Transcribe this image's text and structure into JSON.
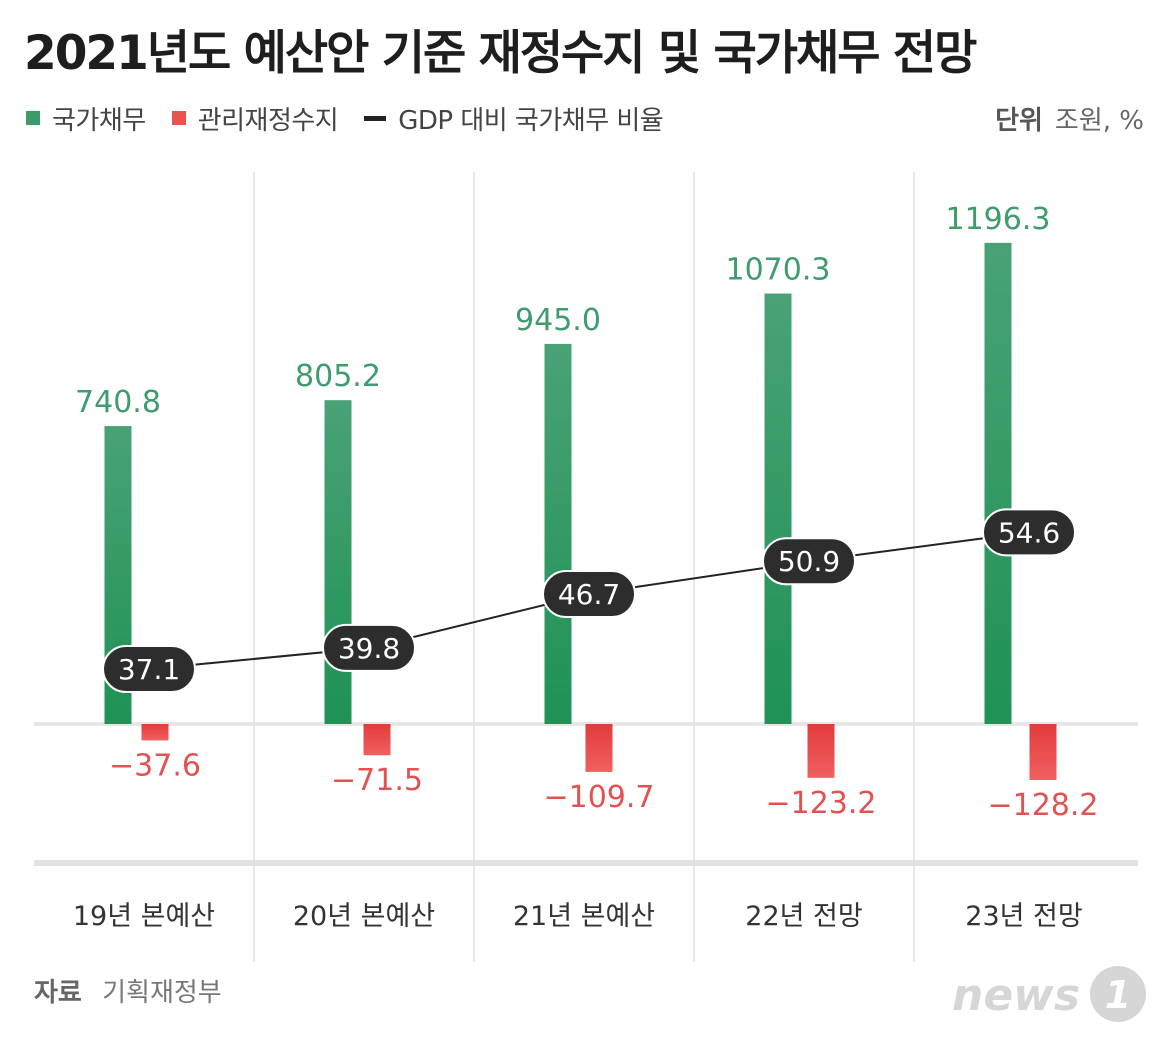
{
  "title": "2021년도 예산안 기준 재정수지 및 국가채무 전망",
  "legend": {
    "debt": "국가채무",
    "balance": "관리재정수지",
    "ratio": "GDP 대비 국가채무 비율"
  },
  "unit": {
    "key": "단위",
    "value": "조원, %"
  },
  "source": {
    "key": "자료",
    "value": "기획재정부"
  },
  "logo": {
    "text": "news",
    "mark": "1"
  },
  "colors": {
    "debt": "#2e9a62",
    "balance": "#e84b4b",
    "ratio": "#222222"
  },
  "chart_data": {
    "type": "bar",
    "categories": [
      "19년 본예산",
      "20년 본예산",
      "21년 본예산",
      "22년 전망",
      "23년 전망"
    ],
    "series": [
      {
        "name": "국가채무",
        "type": "bar",
        "values": [
          740.8,
          805.2,
          945.0,
          1070.3,
          1196.3
        ],
        "labels": [
          "740.8",
          "805.2",
          "945.0",
          "1070.3",
          "1196.3"
        ]
      },
      {
        "name": "관리재정수지",
        "type": "bar",
        "values": [
          -37.6,
          -71.5,
          -109.7,
          -123.2,
          -128.2
        ],
        "labels": [
          "−37.6",
          "−71.5",
          "−109.7",
          "−123.2",
          "−128.2"
        ]
      },
      {
        "name": "GDP 대비 국가채무 비율",
        "type": "line",
        "values": [
          37.1,
          39.8,
          46.7,
          50.9,
          54.6
        ],
        "labels": [
          "37.1",
          "39.8",
          "46.7",
          "50.9",
          "54.6"
        ]
      }
    ]
  }
}
